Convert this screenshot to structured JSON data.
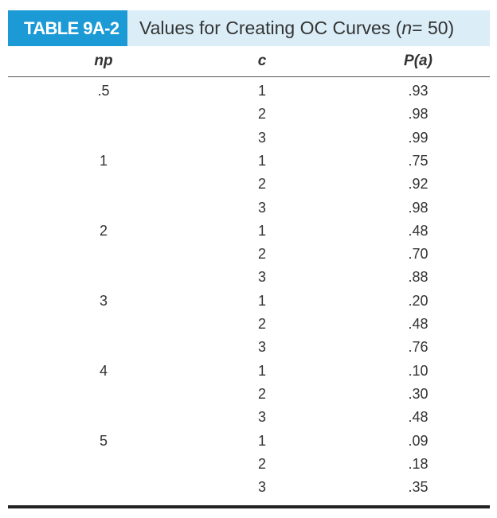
{
  "table": {
    "label": "TABLE 9A-2",
    "title_prefix": "Values for Creating OC Curves (",
    "title_var": "n",
    "title_suffix": " = 50)",
    "headers": {
      "np": "np",
      "c": "c",
      "pa": "P(a)"
    },
    "rows": [
      {
        "np": ".5",
        "c": "1",
        "pa": ".93"
      },
      {
        "np": "",
        "c": "2",
        "pa": ".98"
      },
      {
        "np": "",
        "c": "3",
        "pa": ".99"
      },
      {
        "np": "1",
        "c": "1",
        "pa": ".75"
      },
      {
        "np": "",
        "c": "2",
        "pa": ".92"
      },
      {
        "np": "",
        "c": "3",
        "pa": ".98"
      },
      {
        "np": "2",
        "c": "1",
        "pa": ".48"
      },
      {
        "np": "",
        "c": "2",
        "pa": ".70"
      },
      {
        "np": "",
        "c": "3",
        "pa": ".88"
      },
      {
        "np": "3",
        "c": "1",
        "pa": ".20"
      },
      {
        "np": "",
        "c": "2",
        "pa": ".48"
      },
      {
        "np": "",
        "c": "3",
        "pa": ".76"
      },
      {
        "np": "4",
        "c": "1",
        "pa": ".10"
      },
      {
        "np": "",
        "c": "2",
        "pa": ".30"
      },
      {
        "np": "",
        "c": "3",
        "pa": ".48"
      },
      {
        "np": "5",
        "c": "1",
        "pa": ".09"
      },
      {
        "np": "",
        "c": "2",
        "pa": ".18"
      },
      {
        "np": "",
        "c": "3",
        "pa": ".35"
      }
    ]
  }
}
